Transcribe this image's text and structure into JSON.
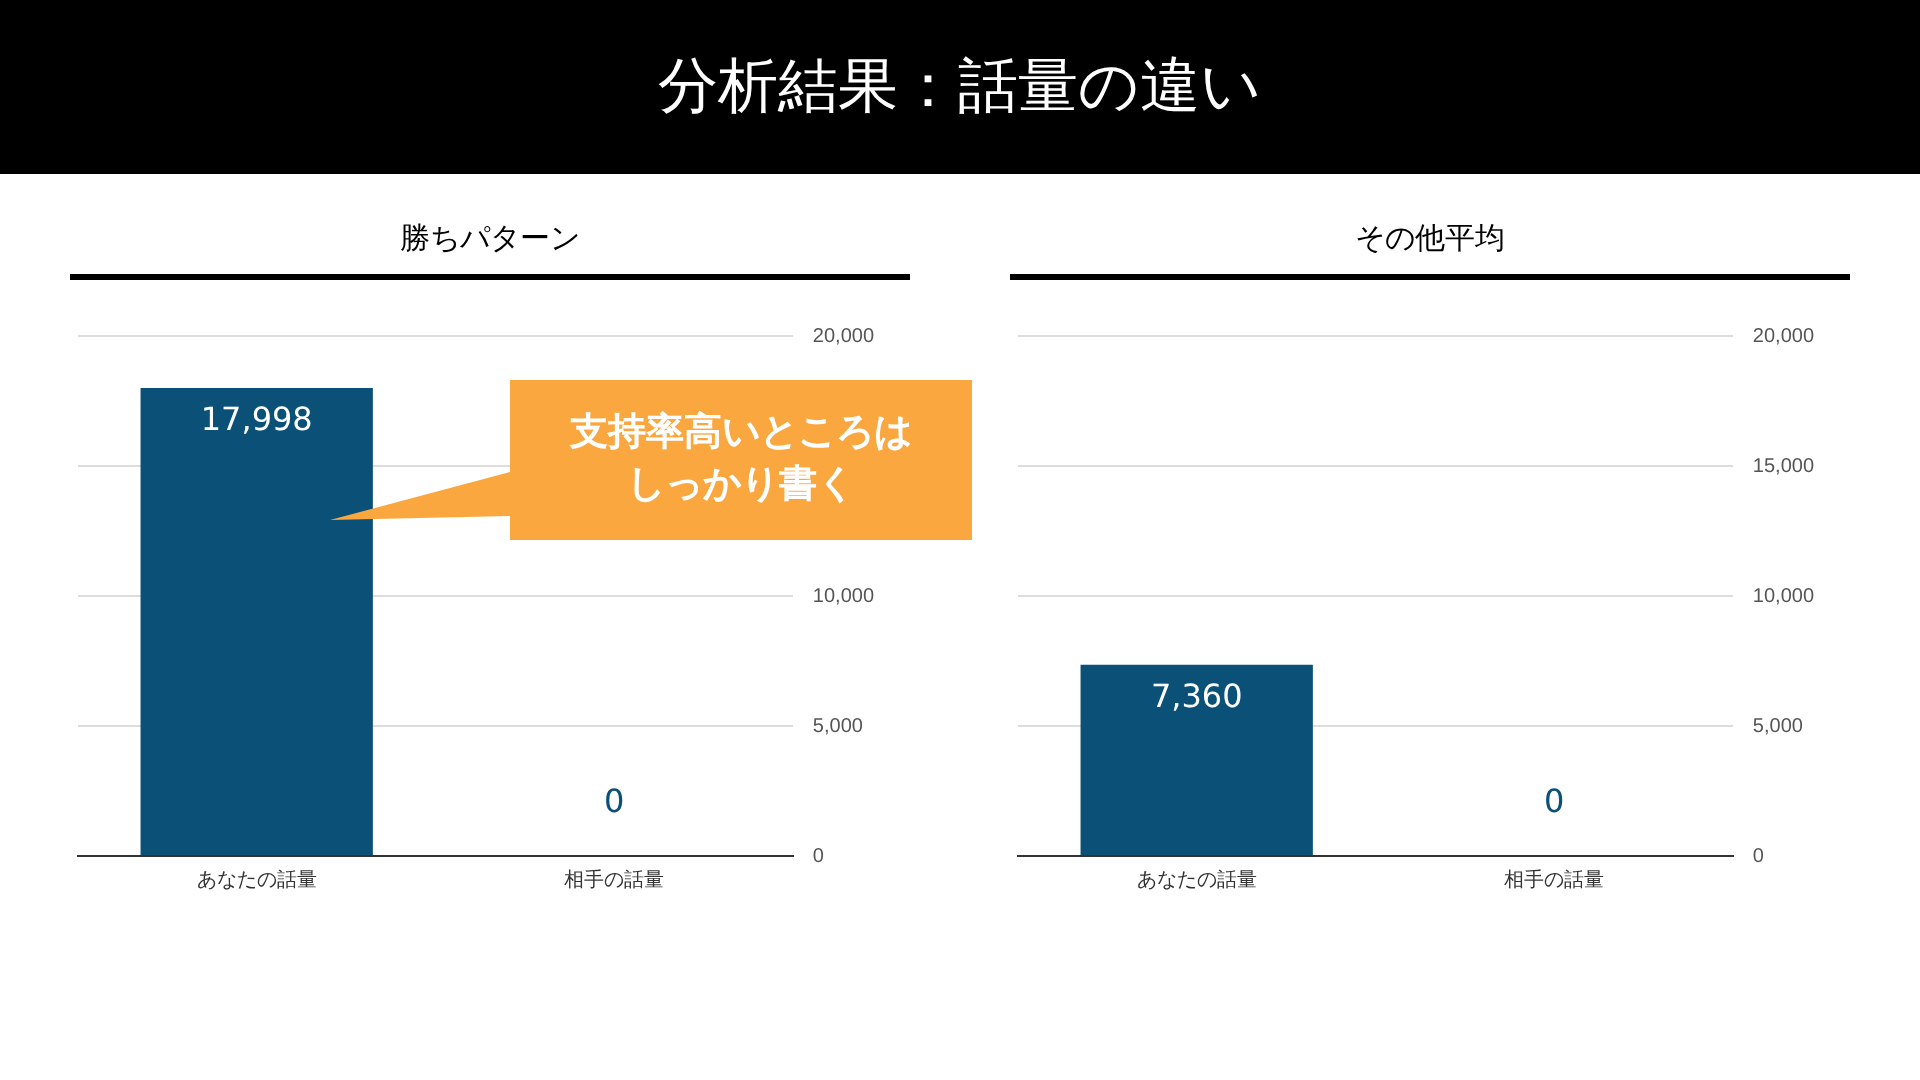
{
  "chart_data": [
    {
      "type": "bar",
      "title": "勝ちパターン",
      "categories": [
        "あなたの話量",
        "相手の話量"
      ],
      "values": [
        17998,
        0
      ],
      "value_labels": [
        "17,998",
        "0"
      ],
      "color": "#0b5177",
      "ylim": [
        0,
        20000
      ],
      "yticks": [
        {
          "value": 0,
          "label": "0"
        },
        {
          "value": 5000,
          "label": "5,000"
        },
        {
          "value": 10000,
          "label": "10,000"
        },
        {
          "value": 15000,
          "label": null
        },
        {
          "value": 20000,
          "label": "20,000"
        }
      ],
      "grid": "y",
      "legend": false,
      "annotations": [
        "分析結果：話量の違い",
        "支持率高いところはしっかり書く"
      ]
    },
    {
      "type": "bar",
      "title": "その他平均",
      "categories": [
        "あなたの話量",
        "相手の話量"
      ],
      "values": [
        7360,
        0
      ],
      "value_labels": [
        "7,360",
        "0"
      ],
      "color": "#0b5177",
      "ylim": [
        0,
        20000
      ],
      "yticks": [
        {
          "value": 0,
          "label": "0"
        },
        {
          "value": 5000,
          "label": "5,000"
        },
        {
          "value": 10000,
          "label": "10,000"
        },
        {
          "value": 15000,
          "label": "15,000"
        },
        {
          "value": 20000,
          "label": "20,000"
        }
      ],
      "grid": "y",
      "legend": false
    }
  ]
}
